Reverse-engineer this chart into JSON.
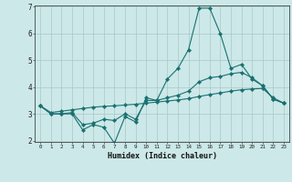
{
  "xlabel": "Humidex (Indice chaleur)",
  "x": [
    0,
    1,
    2,
    3,
    4,
    5,
    6,
    7,
    8,
    9,
    10,
    11,
    12,
    13,
    14,
    15,
    16,
    17,
    18,
    19,
    20,
    21,
    22,
    23
  ],
  "line1": [
    3.3,
    3.0,
    3.0,
    3.0,
    2.4,
    2.6,
    2.5,
    1.9,
    2.9,
    2.7,
    3.6,
    3.5,
    4.3,
    4.7,
    5.4,
    6.95,
    6.95,
    6.0,
    4.7,
    4.85,
    4.3,
    4.05,
    3.55,
    3.4
  ],
  "line2": [
    3.3,
    3.0,
    3.0,
    3.05,
    2.6,
    2.65,
    2.8,
    2.75,
    3.0,
    2.8,
    3.5,
    3.5,
    3.6,
    3.7,
    3.85,
    4.2,
    4.35,
    4.4,
    4.5,
    4.55,
    4.35,
    4.05,
    3.55,
    3.4
  ],
  "line3": [
    3.3,
    3.05,
    3.1,
    3.15,
    3.2,
    3.25,
    3.28,
    3.3,
    3.33,
    3.36,
    3.4,
    3.44,
    3.48,
    3.52,
    3.57,
    3.65,
    3.72,
    3.78,
    3.85,
    3.9,
    3.93,
    3.95,
    3.6,
    3.4
  ],
  "line_color": "#1a7070",
  "bg_color": "#cce8e8",
  "grid_color": "#aac8c8",
  "ylim": [
    2.0,
    7.0
  ],
  "xlim": [
    -0.5,
    23.5
  ],
  "yticks": [
    2,
    3,
    4,
    5,
    6,
    7
  ],
  "xticks": [
    0,
    1,
    2,
    3,
    4,
    5,
    6,
    7,
    8,
    9,
    10,
    11,
    12,
    13,
    14,
    15,
    16,
    17,
    18,
    19,
    20,
    21,
    22,
    23
  ]
}
